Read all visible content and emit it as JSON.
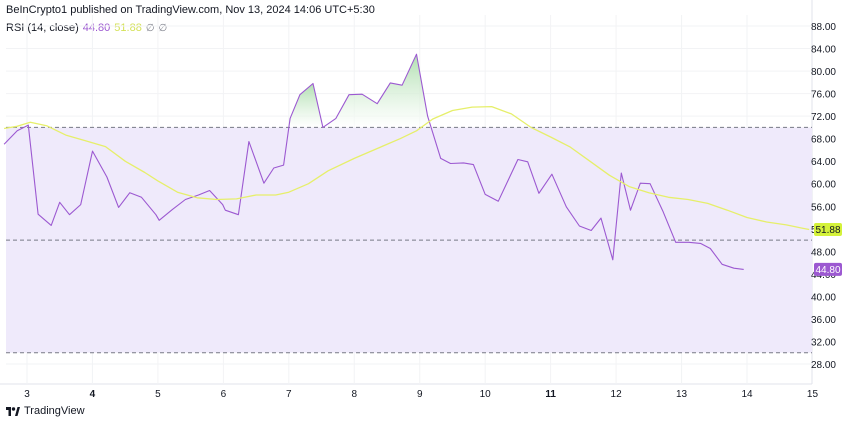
{
  "header": {
    "attribution": "BeInCrypto1 published on TradingView.com, Nov 13, 2024 14:06 UTC+5:30"
  },
  "legend": {
    "indicator": "RSI (14, close)",
    "rsi_value": "44.80",
    "ma_value": "51.88",
    "icon1": "∅",
    "icon2": "∅"
  },
  "footer": {
    "brand": "TradingView",
    "logo_icon": "tradingview-logo"
  },
  "colors": {
    "rsi": "#9c59d1",
    "ma": "#e6ef6a",
    "band_fill": "#efeafb",
    "overbought_fill": "#d4eed4",
    "ma_badge": "#d4f23a",
    "rsi_badge": "#9c59d1"
  },
  "chart_data": {
    "type": "line",
    "ylim": [
      28,
      88
    ],
    "xlim": [
      2.65,
      14.95
    ],
    "y_ticks": [
      "88.00",
      "84.00",
      "80.00",
      "76.00",
      "72.00",
      "68.00",
      "64.00",
      "60.00",
      "56.00",
      "52.00",
      "48.00",
      "44.00",
      "40.00",
      "36.00",
      "32.00",
      "28.00"
    ],
    "x_ticks": [
      {
        "x": 3,
        "label": "3",
        "bold": false
      },
      {
        "x": 4,
        "label": "4",
        "bold": true
      },
      {
        "x": 5,
        "label": "5",
        "bold": false
      },
      {
        "x": 6,
        "label": "6",
        "bold": false
      },
      {
        "x": 7,
        "label": "7",
        "bold": false
      },
      {
        "x": 8,
        "label": "8",
        "bold": false
      },
      {
        "x": 9,
        "label": "9",
        "bold": false
      },
      {
        "x": 10,
        "label": "10",
        "bold": false
      },
      {
        "x": 11,
        "label": "11",
        "bold": true
      },
      {
        "x": 12,
        "label": "12",
        "bold": false
      },
      {
        "x": 13,
        "label": "13",
        "bold": false
      },
      {
        "x": 14,
        "label": "14",
        "bold": false
      },
      {
        "x": 15,
        "label": "15",
        "bold": false
      }
    ],
    "levels": {
      "upper": 70,
      "middle": 50,
      "lower": 30
    },
    "badges": [
      {
        "name": "ma-value-badge",
        "value": 51.88,
        "label": "51.88"
      },
      {
        "name": "rsi-value-badge",
        "value": 44.8,
        "label": "44.80"
      }
    ],
    "series": [
      {
        "key": "rsi",
        "points": [
          [
            2.65,
            67.0
          ],
          [
            2.85,
            69.4
          ],
          [
            3.02,
            70.4
          ],
          [
            3.17,
            54.6
          ],
          [
            3.37,
            52.6
          ],
          [
            3.5,
            56.7
          ],
          [
            3.65,
            54.5
          ],
          [
            3.82,
            56.3
          ],
          [
            4.0,
            65.8
          ],
          [
            4.22,
            61.2
          ],
          [
            4.4,
            55.8
          ],
          [
            4.57,
            58.4
          ],
          [
            4.75,
            57.6
          ],
          [
            4.97,
            54.5
          ],
          [
            5.02,
            53.5
          ],
          [
            5.22,
            55.4
          ],
          [
            5.42,
            57.2
          ],
          [
            5.62,
            58.0
          ],
          [
            5.79,
            58.8
          ],
          [
            5.99,
            56.3
          ],
          [
            6.03,
            55.3
          ],
          [
            6.23,
            54.5
          ],
          [
            6.39,
            67.5
          ],
          [
            6.62,
            60.1
          ],
          [
            6.77,
            62.8
          ],
          [
            6.92,
            63.3
          ],
          [
            7.02,
            71.6
          ],
          [
            7.17,
            75.8
          ],
          [
            7.37,
            77.8
          ],
          [
            7.52,
            70.0
          ],
          [
            7.72,
            71.6
          ],
          [
            7.92,
            75.8
          ],
          [
            8.12,
            75.9
          ],
          [
            8.35,
            74.2
          ],
          [
            8.55,
            77.9
          ],
          [
            8.73,
            77.5
          ],
          [
            8.95,
            83.0
          ],
          [
            9.12,
            72.0
          ],
          [
            9.32,
            64.5
          ],
          [
            9.47,
            63.6
          ],
          [
            9.67,
            63.7
          ],
          [
            9.82,
            63.4
          ],
          [
            10.0,
            58.1
          ],
          [
            10.2,
            56.9
          ],
          [
            10.5,
            64.3
          ],
          [
            10.65,
            63.9
          ],
          [
            10.82,
            58.3
          ],
          [
            11.02,
            61.7
          ],
          [
            11.24,
            55.9
          ],
          [
            11.44,
            52.5
          ],
          [
            11.62,
            51.7
          ],
          [
            11.77,
            53.9
          ],
          [
            11.95,
            46.5
          ],
          [
            12.08,
            61.9
          ],
          [
            12.22,
            55.3
          ],
          [
            12.37,
            60.1
          ],
          [
            12.52,
            60.0
          ],
          [
            12.72,
            55.0
          ],
          [
            12.91,
            49.6
          ],
          [
            13.11,
            49.6
          ],
          [
            13.29,
            49.4
          ],
          [
            13.44,
            48.5
          ],
          [
            13.62,
            45.7
          ],
          [
            13.8,
            45.0
          ],
          [
            13.95,
            44.8
          ]
        ]
      },
      {
        "key": "ma",
        "points": [
          [
            2.65,
            69.8
          ],
          [
            2.85,
            70.2
          ],
          [
            3.05,
            70.9
          ],
          [
            3.3,
            70.3
          ],
          [
            3.6,
            68.6
          ],
          [
            3.9,
            67.6
          ],
          [
            4.2,
            66.6
          ],
          [
            4.5,
            64.0
          ],
          [
            4.8,
            62.0
          ],
          [
            5.0,
            60.5
          ],
          [
            5.3,
            58.5
          ],
          [
            5.6,
            57.5
          ],
          [
            5.9,
            57.2
          ],
          [
            6.2,
            57.3
          ],
          [
            6.5,
            58.0
          ],
          [
            6.8,
            58.0
          ],
          [
            7.0,
            58.5
          ],
          [
            7.3,
            60.0
          ],
          [
            7.6,
            62.3
          ],
          [
            8.0,
            64.5
          ],
          [
            8.4,
            66.5
          ],
          [
            8.7,
            68.0
          ],
          [
            8.95,
            69.4
          ],
          [
            9.2,
            71.5
          ],
          [
            9.5,
            73.0
          ],
          [
            9.8,
            73.6
          ],
          [
            10.1,
            73.7
          ],
          [
            10.4,
            72.4
          ],
          [
            10.7,
            70.0
          ],
          [
            11.0,
            68.3
          ],
          [
            11.3,
            66.5
          ],
          [
            11.6,
            64.0
          ],
          [
            11.9,
            61.5
          ],
          [
            12.2,
            59.5
          ],
          [
            12.5,
            58.4
          ],
          [
            12.8,
            57.6
          ],
          [
            13.1,
            57.2
          ],
          [
            13.4,
            56.5
          ],
          [
            13.7,
            55.3
          ],
          [
            14.0,
            54.0
          ],
          [
            14.3,
            53.2
          ],
          [
            14.6,
            52.7
          ],
          [
            14.85,
            52.1
          ],
          [
            14.95,
            51.88
          ]
        ]
      }
    ]
  }
}
